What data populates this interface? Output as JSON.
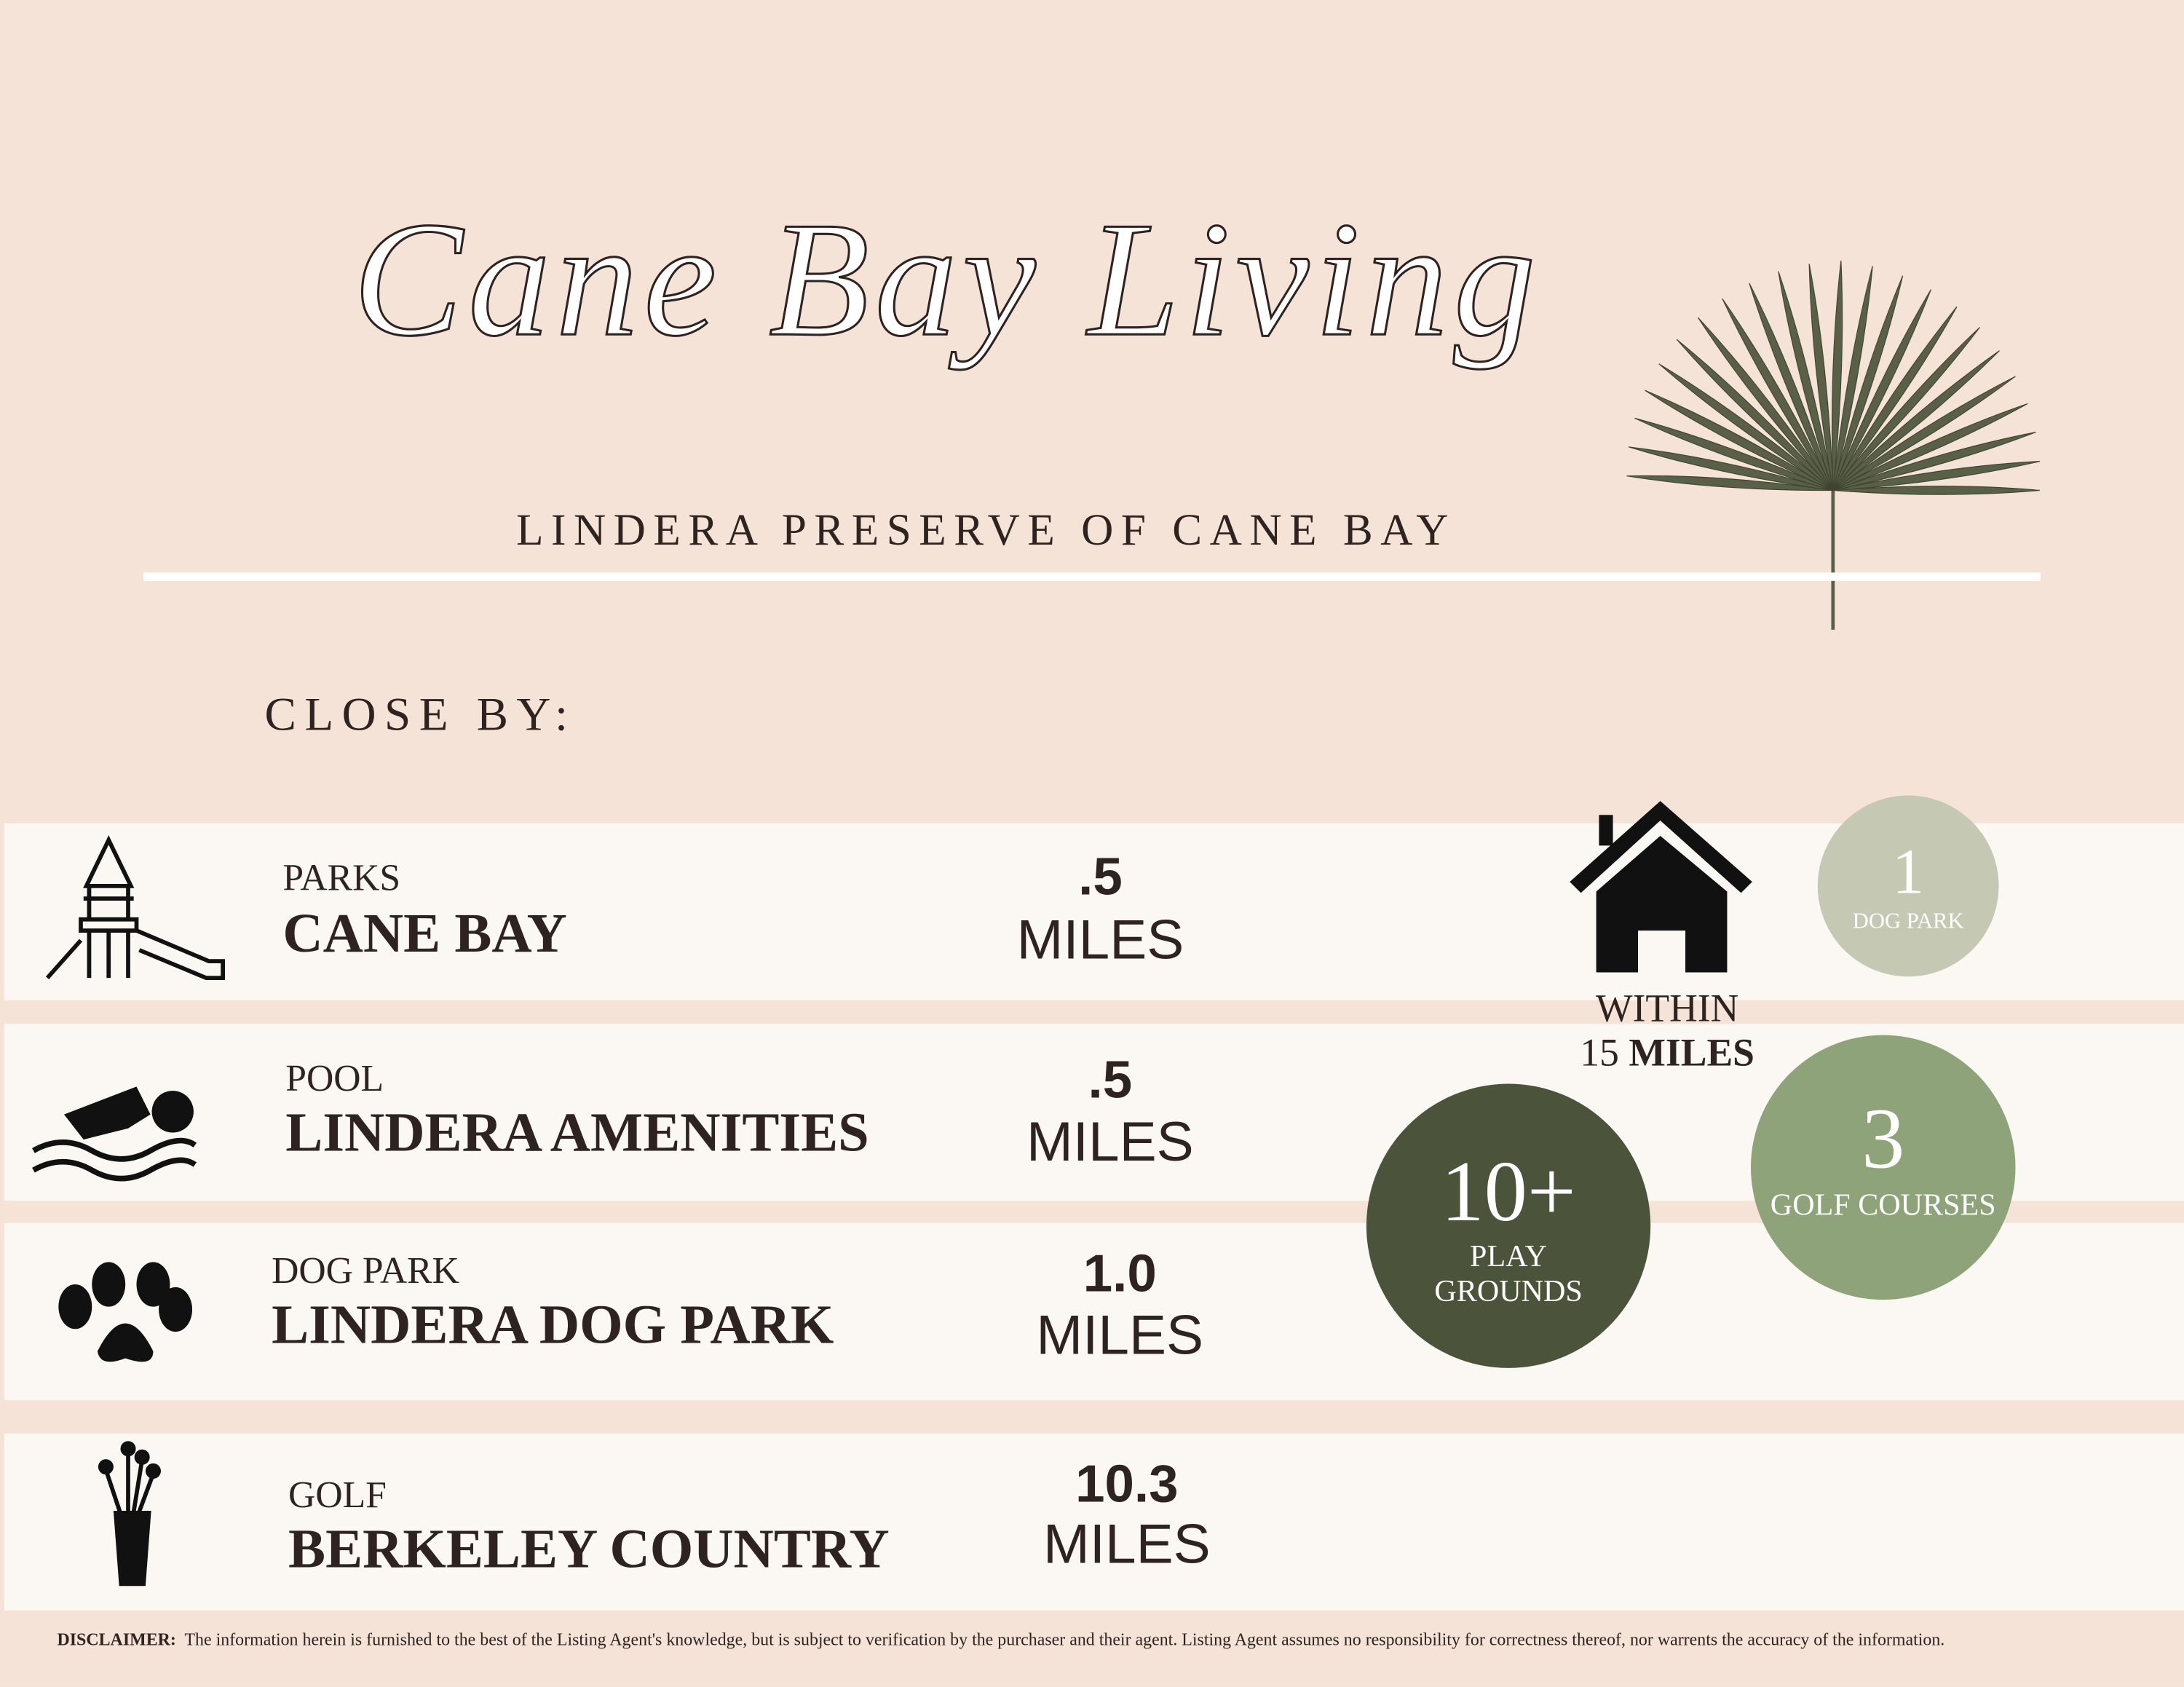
{
  "header": {
    "title": "Cane Bay Living",
    "subtitle": "LINDERA PRESERVE OF CANE BAY"
  },
  "section": "CLOSE BY:",
  "rows": [
    {
      "category": "PARKS",
      "name": "CANE BAY",
      "distance": ".5",
      "unit": "MILES"
    },
    {
      "category": "POOL",
      "name": "LINDERA AMENITIES",
      "distance": ".5",
      "unit": "MILES"
    },
    {
      "category": "DOG PARK",
      "name": "LINDERA DOG PARK",
      "distance": "1.0",
      "unit": "MILES"
    },
    {
      "category": "GOLF",
      "name": "BERKELEY COUNTRY",
      "distance": "10.3",
      "unit": "MILES"
    }
  ],
  "within": {
    "label": "WITHIN",
    "number": "15",
    "unit": "MILES"
  },
  "stats": [
    {
      "value": "1",
      "label": [
        "DOG PARK"
      ]
    },
    {
      "value": "10+",
      "label": [
        "PLAY",
        "GROUNDS"
      ]
    },
    {
      "value": "3",
      "label": [
        "GOLF COURSES"
      ]
    }
  ],
  "disclaimer": {
    "label": "DISCLAIMER:",
    "text": "The information herein is furnished to the best of the Listing Agent's knowledge, but is subject to verification by the purchaser and their agent. Listing Agent assumes no responsibility for correctness thereof, nor warrents the accuracy of the information."
  }
}
